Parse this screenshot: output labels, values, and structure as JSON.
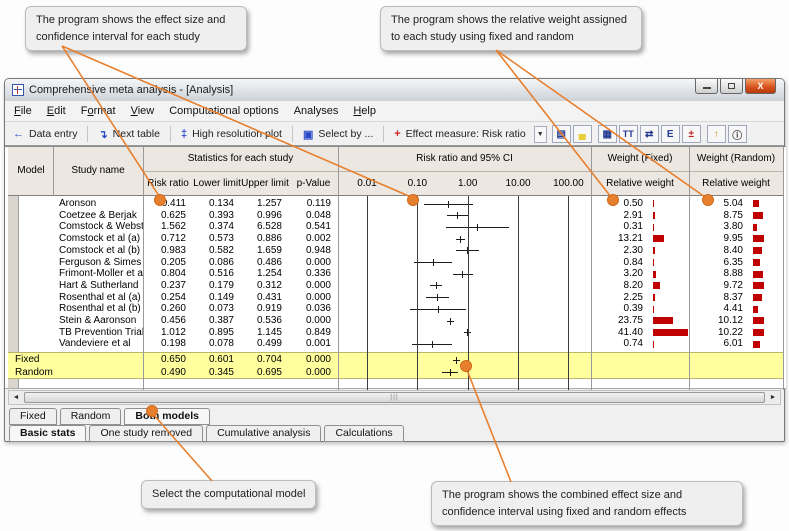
{
  "callouts": {
    "top_left": "The program shows the effect size and confidence interval for each study",
    "top_right": "The program shows the relative weight assigned to each study using fixed and random",
    "bottom_left": "Select the computational model",
    "bottom_right": "The program shows the combined effect size and confidence interval using fixed and random effects"
  },
  "window": {
    "title": "Comprehensive meta analysis - [Analysis]",
    "menu": [
      {
        "label": "File",
        "u": 0
      },
      {
        "label": "Edit",
        "u": 0
      },
      {
        "label": "Format",
        "u": 1
      },
      {
        "label": "View",
        "u": 0
      },
      {
        "label": "Computational options",
        "u": -1
      },
      {
        "label": "Analyses",
        "u": -1
      },
      {
        "label": "Help",
        "u": 0
      }
    ],
    "toolbar": {
      "data_entry": "Data entry",
      "next_table": "Next table",
      "high_res_plot": "High resolution plot",
      "select_by": "Select by ...",
      "effect_measure": "Effect measure:  Risk ratio",
      "icon_buttons": [
        {
          "name": "list-view-icon",
          "glyph": "▤",
          "color": "#223a8f"
        },
        {
          "name": "preview-pane-icon",
          "glyph": "▄",
          "color": "#e6cf3a"
        },
        {
          "name": "grid-columns-icon",
          "glyph": "▦",
          "color": "#223a8f"
        },
        {
          "name": "column-width-icon",
          "glyph": "TT",
          "color": "#223a8f"
        },
        {
          "name": "fit-columns-icon",
          "glyph": "⇄",
          "color": "#223a8f"
        },
        {
          "name": "decimals-icon",
          "glyph": "E",
          "color": "#223a8f"
        },
        {
          "name": "plus-minus-icon",
          "glyph": "±",
          "color": "#c02020"
        },
        {
          "name": "sort-icon",
          "glyph": "↑",
          "color": "#d09a10"
        },
        {
          "name": "info-icon",
          "glyph": "ⓘ",
          "color": "#444444"
        }
      ]
    }
  },
  "table": {
    "headers": {
      "model": "Model",
      "study": "Study name",
      "stats_group": "Statistics for each study",
      "rr": "Risk ratio",
      "ll": "Lower limit",
      "ul": "Upper limit",
      "pv": "p-Value",
      "forest_group": "Risk ratio and 95% CI",
      "weight_fixed": "Weight (Fixed)",
      "weight_random": "Weight (Random)",
      "relative_weight": "Relative weight"
    },
    "axis_ticks": [
      "0.01",
      "0.10",
      "1.00",
      "10.00",
      "100.00"
    ],
    "rows": [
      {
        "study": "Aronson",
        "rr": "0.411",
        "ll": "0.134",
        "ul": "1.257",
        "pv": "0.119",
        "wf": "0.50",
        "wr": "5.04"
      },
      {
        "study": "Coetzee & Berjak",
        "rr": "0.625",
        "ll": "0.393",
        "ul": "0.996",
        "pv": "0.048",
        "wf": "2.91",
        "wr": "8.75"
      },
      {
        "study": "Comstock & Webster",
        "rr": "1.562",
        "ll": "0.374",
        "ul": "6.528",
        "pv": "0.541",
        "wf": "0.31",
        "wr": "3.80"
      },
      {
        "study": "Comstock et al (a)",
        "rr": "0.712",
        "ll": "0.573",
        "ul": "0.886",
        "pv": "0.002",
        "wf": "13.21",
        "wr": "9.95"
      },
      {
        "study": "Comstock et al (b)",
        "rr": "0.983",
        "ll": "0.582",
        "ul": "1.659",
        "pv": "0.948",
        "wf": "2.30",
        "wr": "8.40"
      },
      {
        "study": "Ferguson & Simes",
        "rr": "0.205",
        "ll": "0.086",
        "ul": "0.486",
        "pv": "0.000",
        "wf": "0.84",
        "wr": "6.35"
      },
      {
        "study": "Frimont-Moller et al",
        "rr": "0.804",
        "ll": "0.516",
        "ul": "1.254",
        "pv": "0.336",
        "wf": "3.20",
        "wr": "8.88"
      },
      {
        "study": "Hart & Sutherland",
        "rr": "0.237",
        "ll": "0.179",
        "ul": "0.312",
        "pv": "0.000",
        "wf": "8.20",
        "wr": "9.72"
      },
      {
        "study": "Rosenthal et al (a)",
        "rr": "0.254",
        "ll": "0.149",
        "ul": "0.431",
        "pv": "0.000",
        "wf": "2.25",
        "wr": "8.37"
      },
      {
        "study": "Rosenthal et al (b)",
        "rr": "0.260",
        "ll": "0.073",
        "ul": "0.919",
        "pv": "0.036",
        "wf": "0.39",
        "wr": "4.41"
      },
      {
        "study": "Stein & Aaronson",
        "rr": "0.456",
        "ll": "0.387",
        "ul": "0.536",
        "pv": "0.000",
        "wf": "23.75",
        "wr": "10.12"
      },
      {
        "study": "TB Prevention Trial",
        "rr": "1.012",
        "ll": "0.895",
        "ul": "1.145",
        "pv": "0.849",
        "wf": "41.40",
        "wr": "10.22"
      },
      {
        "study": "Vandeviere et al",
        "rr": "0.198",
        "ll": "0.078",
        "ul": "0.499",
        "pv": "0.001",
        "wf": "0.74",
        "wr": "6.01"
      }
    ],
    "summary_rows": [
      {
        "model": "Fixed",
        "rr": "0.650",
        "ll": "0.601",
        "ul": "0.704",
        "pv": "0.000"
      },
      {
        "model": "Random",
        "rr": "0.490",
        "ll": "0.345",
        "ul": "0.695",
        "pv": "0.000"
      }
    ]
  },
  "scrollbar": {
    "grip": "|||"
  },
  "tabs": {
    "model_tabs": {
      "items": [
        "Fixed",
        "Random",
        "Both models"
      ],
      "selected": "Both models"
    },
    "view_tabs": {
      "items": [
        "Basic stats",
        "One study removed",
        "Cumulative analysis",
        "Calculations"
      ],
      "selected": "Basic stats"
    }
  },
  "colors": {
    "annotation_orange": "#e87f2d",
    "highlight_yellow": "#ffff9e",
    "weight_bar_red": "#c00000"
  }
}
